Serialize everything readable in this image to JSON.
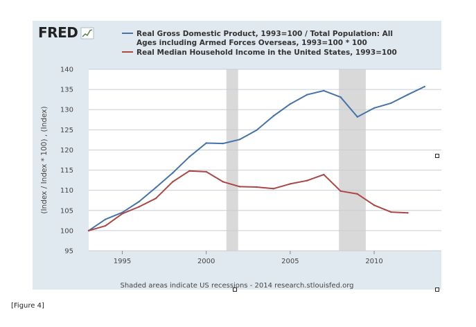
{
  "logo": {
    "text": "FRED",
    "icon": "trend-chart-icon"
  },
  "caption": "[Figure 4]",
  "footer": "Shaded areas indicate US recessions - 2014 research.stlouisfed.org",
  "chart_data": {
    "type": "line",
    "title": "",
    "xlabel": "",
    "ylabel": "(Index / Index * 100) , (Index)",
    "xlim": [
      1993,
      2014
    ],
    "ylim": [
      95,
      140
    ],
    "xticks": [
      1995,
      2000,
      2005,
      2010
    ],
    "yticks": [
      95,
      100,
      105,
      110,
      115,
      120,
      125,
      130,
      135,
      140
    ],
    "grid": true,
    "legend_position": "top",
    "recessions": [
      [
        2001.2,
        2001.9
      ],
      [
        2007.9,
        2009.5
      ]
    ],
    "series": [
      {
        "name": "Real Gross Domestic Product, 1993=100 / Total Population: All Ages including Armed Forces Overseas, 1993=100 * 100",
        "legend_lines": [
          "Real Gross Domestic Product, 1993=100 / Total Population: All",
          "Ages including Armed Forces Overseas, 1993=100 * 100"
        ],
        "color": "#4572a7",
        "x": [
          1993,
          1994,
          1995,
          1996,
          1997,
          1998,
          1999,
          2000,
          2001,
          2002,
          2003,
          2004,
          2005,
          2006,
          2007,
          2008,
          2009,
          2010,
          2011,
          2012,
          2013
        ],
        "values": [
          100.0,
          102.8,
          104.5,
          107.2,
          110.7,
          114.3,
          118.3,
          121.7,
          121.6,
          122.6,
          124.9,
          128.4,
          131.4,
          133.7,
          134.7,
          133.1,
          128.2,
          130.4,
          131.6,
          133.7,
          135.7
        ]
      },
      {
        "name": "Real Median Household Income in the United States, 1993=100",
        "legend_lines": [
          "Real Median Household Income in the United States, 1993=100"
        ],
        "color": "#aa4643",
        "x": [
          1993,
          1994,
          1995,
          1996,
          1997,
          1998,
          1999,
          2000,
          2001,
          2002,
          2003,
          2004,
          2005,
          2006,
          2007,
          2008,
          2009,
          2010,
          2011,
          2012
        ],
        "values": [
          100.0,
          101.2,
          104.2,
          105.9,
          108.0,
          112.1,
          114.8,
          114.6,
          112.1,
          110.9,
          110.8,
          110.4,
          111.6,
          112.4,
          113.9,
          109.8,
          109.1,
          106.3,
          104.6,
          104.4
        ]
      }
    ]
  }
}
